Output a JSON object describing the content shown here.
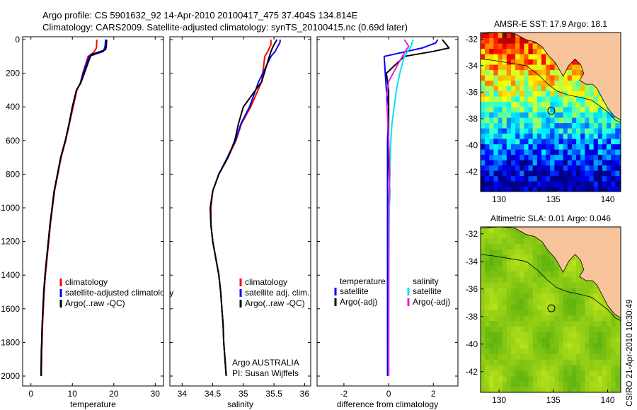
{
  "header": {
    "line1": "Argo profile: CS 5901632_92 14-Apr-2010 20100417_475 37.404S 134.814E",
    "line2": "Climatology: CARS2009. Satellite-adjusted climatology: synTS_20100415.nc (0.69d later)"
  },
  "footer": {
    "credit": "CSIRO 21-Apr-2010 10:30:49"
  },
  "colors": {
    "climatology": "#ff0000",
    "satellite": "#0000ff",
    "argo": "#000000",
    "sal_satellite": "#00e5ee",
    "sal_argo": "#e020e0",
    "land": "#f8c49c"
  },
  "chart_data": [
    {
      "type": "line",
      "id": "temperature",
      "xlabel": "temperature",
      "ylabel": "",
      "xlim": [
        -2,
        32
      ],
      "ylim": [
        2050,
        0
      ],
      "y_reversed": true,
      "xticks": [
        0,
        10,
        20,
        30
      ],
      "yticks": [
        0,
        200,
        400,
        600,
        800,
        1000,
        1200,
        1400,
        1600,
        1800,
        2000
      ],
      "legend": [
        "climatology",
        "satellite-adjusted climatology",
        "Argo(..raw -QC)"
      ],
      "legend_location": "lower-right",
      "series": [
        {
          "name": "climatology",
          "color": "#ff0000",
          "x": [
            15.9,
            15.8,
            15.2,
            13.8,
            12.5,
            11.9,
            11.1,
            10.2,
            9.3,
            8.4,
            7.3,
            6.5,
            5.7,
            5.2,
            4.7,
            4.3,
            3.9,
            3.5,
            3.2,
            3.0,
            2.8,
            2.7,
            2.6,
            2.6,
            2.5
          ],
          "y": [
            0,
            50,
            75,
            100,
            200,
            260,
            300,
            400,
            500,
            600,
            700,
            800,
            900,
            1000,
            1100,
            1200,
            1300,
            1400,
            1500,
            1600,
            1700,
            1800,
            1850,
            1900,
            2000
          ]
        },
        {
          "name": "satellite-adjusted climatology",
          "color": "#0000ff",
          "x": [
            18.0,
            17.9,
            17.5,
            14.0,
            12.6,
            11.9,
            11.0,
            10.0,
            9.2,
            8.3,
            7.2,
            6.4,
            5.6,
            5.1,
            4.6,
            4.2,
            3.8,
            3.4,
            3.1,
            2.9,
            2.7,
            2.6,
            2.5,
            2.5,
            2.4
          ],
          "y": [
            0,
            40,
            70,
            100,
            200,
            260,
            300,
            400,
            500,
            600,
            700,
            800,
            900,
            1000,
            1100,
            1200,
            1300,
            1400,
            1500,
            1600,
            1700,
            1800,
            1850,
            1900,
            2000
          ]
        },
        {
          "name": "Argo(..raw -QC)",
          "color": "#000000",
          "x": [
            18.3,
            18.2,
            18.0,
            14.5,
            12.9,
            12.0,
            11.0,
            10.0,
            9.2,
            8.3,
            7.2,
            6.4,
            5.6,
            5.1,
            4.6,
            4.2,
            3.8,
            3.4,
            3.1,
            2.9,
            2.7,
            2.6,
            2.5,
            2.5
          ],
          "y": [
            0,
            40,
            60,
            90,
            200,
            260,
            300,
            400,
            500,
            600,
            700,
            800,
            900,
            1000,
            1100,
            1200,
            1300,
            1400,
            1500,
            1600,
            1700,
            1800,
            1900,
            2000
          ]
        }
      ]
    },
    {
      "type": "line",
      "id": "salinity",
      "xlabel": "salinity",
      "ylabel": "",
      "xlim": [
        33.8,
        36.1
      ],
      "ylim": [
        2050,
        0
      ],
      "y_reversed": true,
      "xticks": [
        34,
        34.5,
        35,
        35.5,
        36
      ],
      "yticks": [
        0,
        200,
        400,
        600,
        800,
        1000,
        1200,
        1400,
        1600,
        1800,
        2000
      ],
      "legend": [
        "climatology",
        "satellite adj. clim.",
        "Argo(..raw -QC)"
      ],
      "legend_location": "lower-right",
      "annotation": [
        "Argo AUSTRALIA",
        "PI: Susan Wijffels"
      ],
      "series": [
        {
          "name": "climatology",
          "color": "#ff0000",
          "x": [
            35.45,
            35.45,
            35.4,
            35.35,
            35.3,
            35.12,
            34.97,
            34.88,
            34.75,
            34.6,
            34.5,
            34.47,
            34.47,
            34.5,
            34.55,
            34.6,
            34.63,
            34.65,
            34.67,
            34.68,
            34.7,
            34.72
          ],
          "y": [
            0,
            30,
            70,
            100,
            250,
            400,
            500,
            600,
            700,
            800,
            900,
            1000,
            1100,
            1200,
            1300,
            1400,
            1500,
            1600,
            1700,
            1800,
            1900,
            2000
          ]
        },
        {
          "name": "satellite adj. clim.",
          "color": "#0000ff",
          "x": [
            35.6,
            35.6,
            35.52,
            35.45,
            35.25,
            35.1,
            34.96,
            34.87,
            34.74,
            34.6,
            34.5,
            34.46,
            34.47,
            34.5,
            34.55,
            34.6,
            34.63,
            34.65,
            34.67,
            34.68,
            34.7,
            34.72
          ],
          "y": [
            0,
            15,
            70,
            100,
            250,
            400,
            500,
            600,
            700,
            800,
            900,
            1000,
            1100,
            1200,
            1300,
            1400,
            1500,
            1600,
            1700,
            1800,
            1900,
            2000
          ]
        },
        {
          "name": "Argo(..raw -QC)",
          "color": "#000000",
          "x": [
            35.55,
            35.5,
            35.45,
            35.4,
            35.3,
            35.0,
            34.92,
            34.86,
            34.75,
            34.6,
            34.5,
            34.46,
            34.47,
            34.5,
            34.55,
            34.6,
            34.63,
            34.65,
            34.67,
            34.68,
            34.7,
            34.72
          ],
          "y": [
            0,
            30,
            70,
            130,
            250,
            400,
            500,
            600,
            700,
            800,
            900,
            1000,
            1100,
            1200,
            1300,
            1400,
            1500,
            1600,
            1700,
            1800,
            1900,
            2000
          ]
        }
      ]
    },
    {
      "type": "line",
      "id": "difference",
      "xlabel": "difference from climatology",
      "ylabel": "",
      "xlim": [
        -3.2,
        3.1
      ],
      "ylim": [
        2050,
        0
      ],
      "y_reversed": true,
      "xticks": [
        -2,
        0,
        2
      ],
      "yticks": [
        0,
        200,
        400,
        600,
        800,
        1000,
        1200,
        1400,
        1600,
        1800,
        2000
      ],
      "legend": [
        "temperature",
        "satellite",
        "Argo(-adj)",
        "salinity",
        "satellite",
        "Argo(-adj)"
      ],
      "legend_location": "lower-center",
      "series": [
        {
          "name": "temperature satellite",
          "color": "#0000ff",
          "x": [
            2.2,
            2.1,
            1.5,
            -0.2,
            -0.15,
            -0.1,
            0.0,
            -0.05,
            -0.05,
            -0.05,
            -0.05,
            -0.05,
            -0.05,
            -0.05,
            -0.05,
            -0.05,
            -0.05,
            -0.05
          ],
          "y": [
            0,
            20,
            50,
            100,
            200,
            300,
            400,
            600,
            800,
            1000,
            1200,
            1400,
            1500,
            1600,
            1700,
            1800,
            1900,
            2000
          ]
        },
        {
          "name": "temperature Argo(-adj)",
          "color": "#000000",
          "x": [
            2.4,
            2.7,
            2.0,
            0.7,
            -0.1,
            0.0,
            0.0,
            0.0,
            0.05,
            0.0,
            0.0,
            0.0,
            0.0,
            0.0
          ],
          "y": [
            0,
            50,
            70,
            100,
            200,
            300,
            500,
            700,
            900,
            1100,
            1300,
            1500,
            1700,
            2000
          ]
        },
        {
          "name": "salinity satellite",
          "color": "#00e5ee",
          "x": [
            1.1,
            1.0,
            0.7,
            0.5,
            0.35,
            0.25,
            0.15,
            0.1,
            0.05,
            0.03,
            0.02,
            0.01,
            0.0,
            0.0
          ],
          "y": [
            0,
            40,
            100,
            200,
            300,
            400,
            500,
            600,
            800,
            1000,
            1200,
            1500,
            1800,
            2000
          ]
        },
        {
          "name": "salinity Argo(-adj)",
          "color": "#e020e0",
          "x": [
            0.7,
            0.9,
            0.7,
            0.4,
            0.0,
            -0.1,
            -0.05,
            0.0,
            0.05,
            0.0,
            0.0,
            0.0,
            0.0
          ],
          "y": [
            0,
            40,
            80,
            150,
            250,
            350,
            450,
            600,
            800,
            1000,
            1300,
            1600,
            2000
          ]
        }
      ]
    },
    {
      "type": "heatmap",
      "id": "sst-map",
      "title": "AMSR-E SST: 17.9 Argo: 18.1",
      "xlim": [
        128.3,
        141.2
      ],
      "ylim": [
        -43.5,
        -31.5
      ],
      "xticks": [
        130,
        135,
        140
      ],
      "yticks": [
        -32,
        -34,
        -36,
        -38,
        -40,
        -42
      ],
      "marker": {
        "lon": 134.814,
        "lat": -37.404
      },
      "colormap": "jet",
      "range": [
        14,
        22
      ]
    },
    {
      "type": "heatmap",
      "id": "sla-map",
      "title": "Altimetric SLA: 0.01 Argo: 0.046",
      "xlim": [
        128.3,
        141.2
      ],
      "ylim": [
        -43.5,
        -31.5
      ],
      "xticks": [
        130,
        135,
        140
      ],
      "yticks": [
        -32,
        -34,
        -36,
        -38,
        -40,
        -42
      ],
      "marker": {
        "lon": 134.814,
        "lat": -37.404
      },
      "colormap": "greens",
      "range": [
        -0.1,
        0.15
      ]
    }
  ]
}
